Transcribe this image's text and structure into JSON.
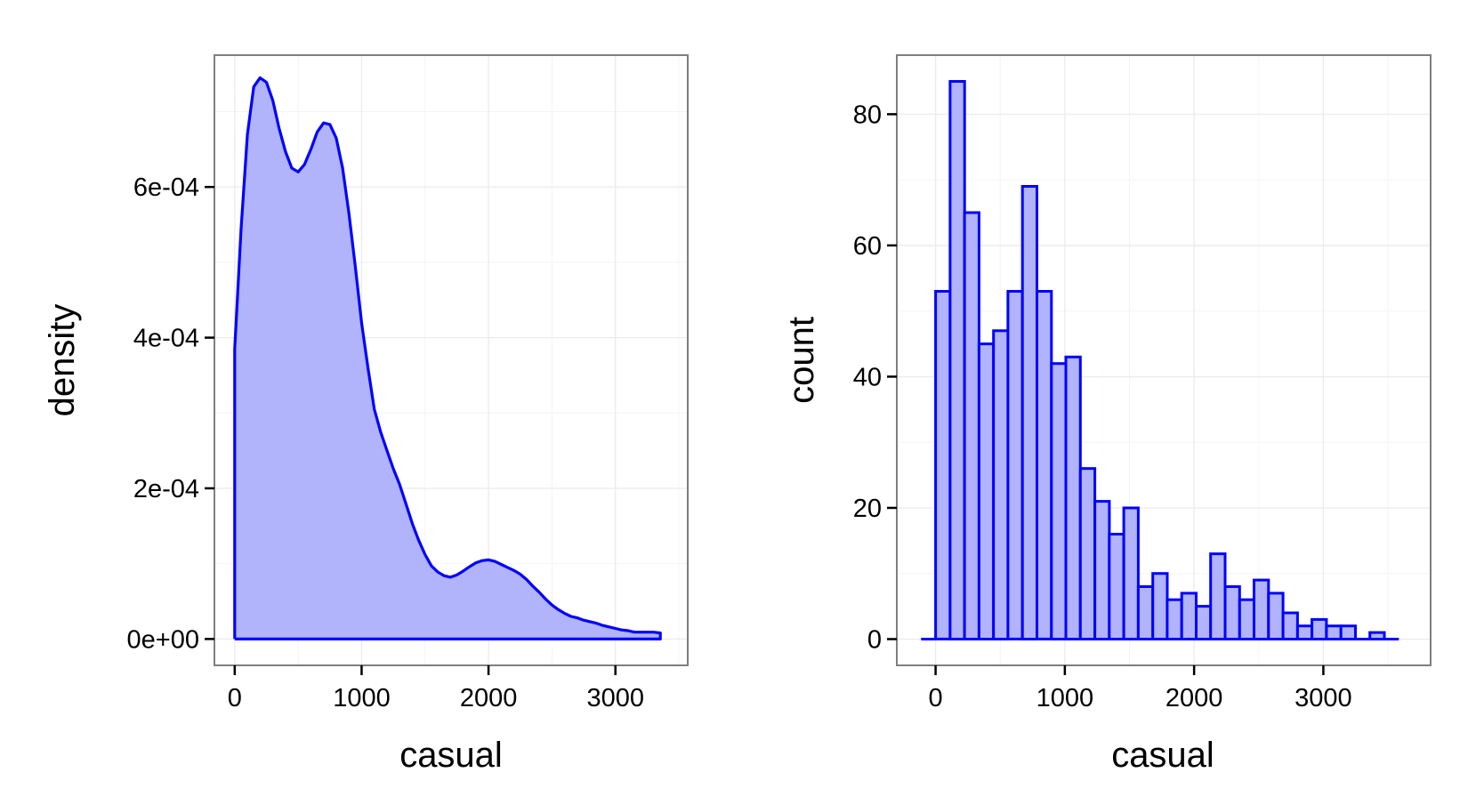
{
  "colors": {
    "fill": "#b1b3fb",
    "stroke": "#0000ff"
  },
  "chart_data": [
    {
      "type": "area",
      "xlabel": "casual",
      "ylabel": "density",
      "xlim": [
        -160,
        3570
      ],
      "ylim": [
        -3.5e-05,
        0.000775
      ],
      "x_ticks": [
        0,
        1000,
        2000,
        3000
      ],
      "x_tick_labels": [
        "0",
        "1000",
        "2000",
        "3000"
      ],
      "y_ticks": [
        0,
        0.0002,
        0.0004,
        0.0006
      ],
      "y_tick_labels": [
        "0e+00",
        "2e-04",
        "4e-04",
        "6e-04"
      ],
      "grid": true,
      "series": [
        {
          "x": [
            0,
            0,
            50,
            100,
            150,
            200,
            250,
            300,
            350,
            400,
            450,
            500,
            550,
            600,
            650,
            700,
            750,
            800,
            850,
            900,
            950,
            1000,
            1050,
            1100,
            1150,
            1200,
            1250,
            1300,
            1350,
            1400,
            1450,
            1500,
            1550,
            1600,
            1650,
            1700,
            1750,
            1800,
            1850,
            1900,
            1950,
            2000,
            2050,
            2100,
            2150,
            2200,
            2250,
            2300,
            2350,
            2400,
            2450,
            2500,
            2550,
            2600,
            2650,
            2700,
            2750,
            2800,
            2850,
            2900,
            2950,
            3000,
            3050,
            3100,
            3150,
            3200,
            3250,
            3300,
            3354,
            3354
          ],
          "y": [
            0,
            0.000385,
            0.000545,
            0.00067,
            0.000733,
            0.000745,
            0.000739,
            0.000715,
            0.000678,
            0.000647,
            0.000625,
            0.00062,
            0.00063,
            0.00065,
            0.000673,
            0.000685,
            0.000683,
            0.000665,
            0.000625,
            0.000565,
            0.000495,
            0.00042,
            0.00036,
            0.000305,
            0.000275,
            0.00025,
            0.000226,
            0.000205,
            0.000179,
            0.000153,
            0.000131,
            0.000112,
            9.7e-05,
            8.9e-05,
            8.4e-05,
            8.2e-05,
            8.5e-05,
            9e-05,
            9.6e-05,
            0.000101,
            0.000104,
            0.000105,
            0.000103,
            9.9e-05,
            9.5e-05,
            9.1e-05,
            8.6e-05,
            7.9e-05,
            7e-05,
            6.2e-05,
            5.3e-05,
            4.5e-05,
            3.9e-05,
            3.4e-05,
            3e-05,
            2.8e-05,
            2.5e-05,
            2.3e-05,
            2.1e-05,
            1.8e-05,
            1.6e-05,
            1.4e-05,
            1.2e-05,
            1.1e-05,
            9e-06,
            9e-06,
            9e-06,
            9e-06,
            8e-06,
            0
          ]
        }
      ]
    },
    {
      "type": "bar",
      "xlabel": "casual",
      "ylabel": "count",
      "xlim": [
        -300,
        3830
      ],
      "ylim": [
        -4,
        89
      ],
      "binwidth": 112,
      "x_ticks": [
        0,
        1000,
        2000,
        3000
      ],
      "x_tick_labels": [
        "0",
        "1000",
        "2000",
        "3000"
      ],
      "y_ticks": [
        0,
        20,
        40,
        60,
        80
      ],
      "y_tick_labels": [
        "0",
        "20",
        "40",
        "60",
        "80"
      ],
      "grid": true,
      "categories": [
        "-112",
        "0",
        "112",
        "224",
        "336",
        "448",
        "560",
        "672",
        "784",
        "896",
        "1008",
        "1120",
        "1232",
        "1344",
        "1456",
        "1568",
        "1680",
        "1792",
        "1904",
        "2016",
        "2128",
        "2240",
        "2352",
        "2464",
        "2576",
        "2688",
        "2800",
        "2912",
        "3024",
        "3136",
        "3248",
        "3360",
        "3472"
      ],
      "values": [
        0,
        53,
        85,
        65,
        45,
        47,
        53,
        69,
        53,
        42,
        43,
        26,
        21,
        16,
        20,
        8,
        10,
        6,
        7,
        5,
        13,
        8,
        6,
        9,
        7,
        4,
        2,
        3,
        2,
        2,
        0,
        1,
        0
      ]
    }
  ]
}
